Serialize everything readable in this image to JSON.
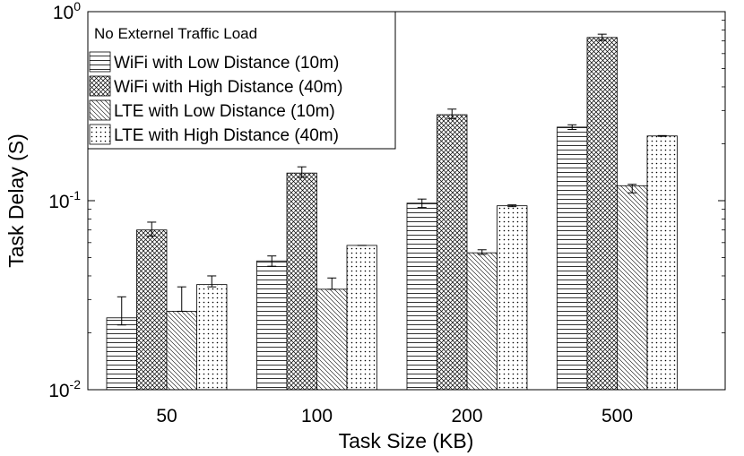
{
  "chart_data": {
    "type": "bar",
    "scale": "log",
    "xlabel": "Task Size (KB)",
    "ylabel": "Task Delay (S)",
    "categories": [
      "50",
      "100",
      "200",
      "500"
    ],
    "ylim": [
      0.01,
      1
    ],
    "yticks": [
      {
        "value": 0.01,
        "base": "10",
        "exp": "-2"
      },
      {
        "value": 0.1,
        "base": "10",
        "exp": "-1"
      },
      {
        "value": 1,
        "base": "10",
        "exp": "0"
      }
    ],
    "grid": false,
    "legend": {
      "placement": "top-left",
      "title": "No Externel Traffic Load"
    },
    "series": [
      {
        "name": "WiFi with Low Distance (10m)",
        "pattern": "horizontal-lines",
        "values": [
          0.024,
          0.048,
          0.097,
          0.245
        ],
        "err_low": [
          0.022,
          0.045,
          0.092,
          0.238
        ],
        "err_high": [
          0.031,
          0.051,
          0.102,
          0.252
        ]
      },
      {
        "name": "WiFi with High Distance (40m)",
        "pattern": "crosshatch",
        "values": [
          0.07,
          0.14,
          0.285,
          0.73
        ],
        "err_low": [
          0.065,
          0.133,
          0.272,
          0.705
        ],
        "err_high": [
          0.077,
          0.151,
          0.305,
          0.76
        ]
      },
      {
        "name": "LTE with Low Distance (10m)",
        "pattern": "diagonal-lines",
        "values": [
          0.026,
          0.034,
          0.053,
          0.12
        ],
        "err_low": [
          0.026,
          0.034,
          0.052,
          0.11
        ],
        "err_high": [
          0.035,
          0.039,
          0.055,
          0.122
        ]
      },
      {
        "name": "LTE with High Distance (40m)",
        "pattern": "dots",
        "values": [
          0.036,
          0.058,
          0.094,
          0.22
        ],
        "err_low": [
          0.035,
          0.058,
          0.093,
          0.219
        ],
        "err_high": [
          0.04,
          0.058,
          0.095,
          0.221
        ]
      }
    ]
  }
}
